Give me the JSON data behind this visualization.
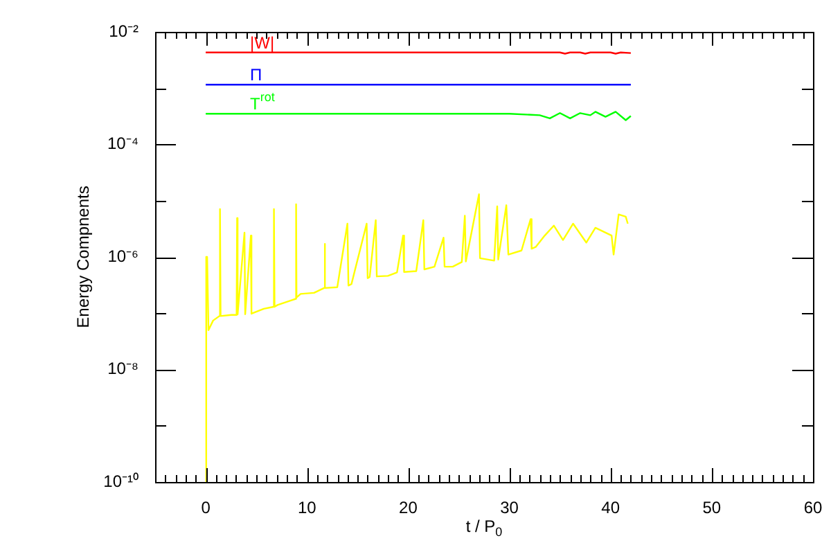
{
  "chart_data": {
    "type": "line",
    "xlabel": "t / P$_{0}$",
    "ylabel": "Energy Compnents",
    "log": "y",
    "grid": false,
    "legend": false,
    "marker": "none",
    "line_style": "solid",
    "xlim": [
      -5,
      60
    ],
    "xticks": [
      {
        "value": -5,
        "label": null
      },
      {
        "value": -4,
        "label": null
      },
      {
        "value": -3,
        "label": null
      },
      {
        "value": -2,
        "label": null
      },
      {
        "value": -1,
        "label": null
      },
      0,
      {
        "value": 1,
        "label": null
      },
      {
        "value": 2,
        "label": null
      },
      {
        "value": 3,
        "label": null
      },
      {
        "value": 4,
        "label": null
      },
      {
        "value": 5,
        "label": null
      },
      {
        "value": 6,
        "label": null
      },
      {
        "value": 7,
        "label": null
      },
      {
        "value": 8,
        "label": null
      },
      {
        "value": 9,
        "label": null
      },
      10,
      {
        "value": 11,
        "label": null
      },
      {
        "value": 12,
        "label": null
      },
      {
        "value": 13,
        "label": null
      },
      {
        "value": 14,
        "label": null
      },
      {
        "value": 15,
        "label": null
      },
      {
        "value": 16,
        "label": null
      },
      {
        "value": 17,
        "label": null
      },
      {
        "value": 18,
        "label": null
      },
      {
        "value": 19,
        "label": null
      },
      20,
      {
        "value": 21,
        "label": null
      },
      {
        "value": 22,
        "label": null
      },
      {
        "value": 23,
        "label": null
      },
      {
        "value": 24,
        "label": null
      },
      {
        "value": 25,
        "label": null
      },
      {
        "value": 26,
        "label": null
      },
      {
        "value": 27,
        "label": null
      },
      {
        "value": 28,
        "label": null
      },
      {
        "value": 29,
        "label": null
      },
      30,
      {
        "value": 31,
        "label": null
      },
      {
        "value": 32,
        "label": null
      },
      {
        "value": 33,
        "label": null
      },
      {
        "value": 34,
        "label": null
      },
      {
        "value": 35,
        "label": null
      },
      {
        "value": 36,
        "label": null
      },
      {
        "value": 37,
        "label": null
      },
      {
        "value": 38,
        "label": null
      },
      {
        "value": 39,
        "label": null
      },
      40,
      {
        "value": 41,
        "label": null
      },
      {
        "value": 42,
        "label": null
      },
      {
        "value": 43,
        "label": null
      },
      {
        "value": 44,
        "label": null
      },
      {
        "value": 45,
        "label": null
      },
      {
        "value": 46,
        "label": null
      },
      {
        "value": 47,
        "label": null
      },
      {
        "value": 48,
        "label": null
      },
      {
        "value": 49,
        "label": null
      },
      50,
      {
        "value": 51,
        "label": null
      },
      {
        "value": 52,
        "label": null
      },
      {
        "value": 53,
        "label": null
      },
      {
        "value": 54,
        "label": null
      },
      {
        "value": 55,
        "label": null
      },
      {
        "value": 56,
        "label": null
      },
      {
        "value": 57,
        "label": null
      },
      {
        "value": 58,
        "label": null
      },
      {
        "value": 59,
        "label": null
      },
      60
    ],
    "ylim": [
      1e-10,
      0.01
    ],
    "yticks": [
      {
        "value": 1e-10,
        "label": "10⁻¹⁰"
      },
      {
        "value": 1e-09,
        "label": null
      },
      {
        "value": 1e-08,
        "label": "10⁻⁸"
      },
      {
        "value": 1e-07,
        "label": null
      },
      {
        "value": 1e-06,
        "label": "10⁻⁶"
      },
      {
        "value": 1e-05,
        "label": null
      },
      {
        "value": 0.0001,
        "label": "10⁻⁴"
      },
      {
        "value": 0.001,
        "label": null
      },
      {
        "value": 0.01,
        "label": "10⁻²"
      }
    ],
    "series": [
      {
        "name": "|W|",
        "color": "#ff0000",
        "x": [
          0,
          35,
          35.5,
          36,
          37,
          37.5,
          38,
          40,
          40.5,
          41,
          42
        ],
        "values": [
          0.0043,
          0.0043,
          0.0041,
          0.0043,
          0.0043,
          0.0041,
          0.0043,
          0.0043,
          0.0041,
          0.0043,
          0.0042
        ]
      },
      {
        "name": "Π",
        "color": "#0000ff",
        "x": [
          0,
          42
        ],
        "values": [
          0.00115,
          0.00115
        ]
      },
      {
        "name": "T$^{rot}$",
        "color": "#00ff00",
        "x": [
          0,
          30,
          33,
          34,
          35,
          36,
          37,
          38,
          38.5,
          39.5,
          40.5,
          41.5,
          42
        ],
        "values": [
          0.00035,
          0.00035,
          0.00033,
          0.00029,
          0.00036,
          0.00029,
          0.00036,
          0.00033,
          0.00038,
          0.00031,
          0.00038,
          0.00027,
          0.00032
        ]
      },
      {
        "color": "#ffff00",
        "x": [
          0,
          0.05,
          0.14,
          0.27,
          0.73,
          1.35,
          1.41,
          1.47,
          2.55,
          3.05,
          3.1,
          3.15,
          3.83,
          3.9,
          4.46,
          4.52,
          5.74,
          6.7,
          6.74,
          6.8,
          7.1,
          8.47,
          8.9,
          8.93,
          8.97,
          9.38,
          10.7,
          11.7,
          11.75,
          11.8,
          13,
          14,
          14.1,
          14.4,
          15.9,
          16,
          16.2,
          16.8,
          16.9,
          18,
          18.9,
          19.5,
          19.6,
          20.8,
          21.5,
          21.6,
          22.6,
          23.5,
          23.6,
          24.4,
          25.3,
          25.6,
          25.7,
          27,
          27.1,
          28.5,
          28.8,
          28.9,
          29.7,
          29.9,
          31.2,
          32.1,
          32.2,
          32.6,
          33.5,
          34.4,
          35.3,
          36.3,
          37.6,
          38.5,
          40.1,
          40.3,
          40.8,
          41.5,
          41.7
        ],
        "values": [
          1e-10,
          1e-06,
          1e-06,
          5e-08,
          7.4e-08,
          8.9e-08,
          7.1e-06,
          8.9e-08,
          9.3e-08,
          9.3e-08,
          4.9e-06,
          9.5e-08,
          2.7e-06,
          9.6e-08,
          2.4e-06,
          9.8e-08,
          1.2e-07,
          1.3e-07,
          7.1e-06,
          1.3e-07,
          1.4e-07,
          1.7e-07,
          1.8e-07,
          8.6e-06,
          1.9e-07,
          2.2e-07,
          2.3e-07,
          2.8e-07,
          1.7e-06,
          2.8e-07,
          2.9e-07,
          3.9e-06,
          3.1e-07,
          3.3e-07,
          3.9e-06,
          4.2e-07,
          4.4e-07,
          4.5e-06,
          4.5e-07,
          4.6e-07,
          5.3e-07,
          2.4e-06,
          5.4e-07,
          5.6e-07,
          4.5e-06,
          6e-07,
          6.7e-07,
          2.2e-06,
          6.7e-07,
          6.7e-07,
          8.1e-07,
          5.4e-06,
          8.3e-07,
          1.3e-05,
          9.5e-07,
          8.6e-07,
          7.9e-06,
          9e-07,
          8.3e-06,
          1.1e-06,
          1.3e-06,
          4.7e-06,
          1.4e-06,
          1.5e-06,
          2.4e-06,
          3.6e-06,
          2e-06,
          3.9e-06,
          1.8e-06,
          3.3e-06,
          2.4e-06,
          1.1e-06,
          5.7e-06,
          5.2e-06,
          3.9e-06
        ]
      }
    ]
  }
}
